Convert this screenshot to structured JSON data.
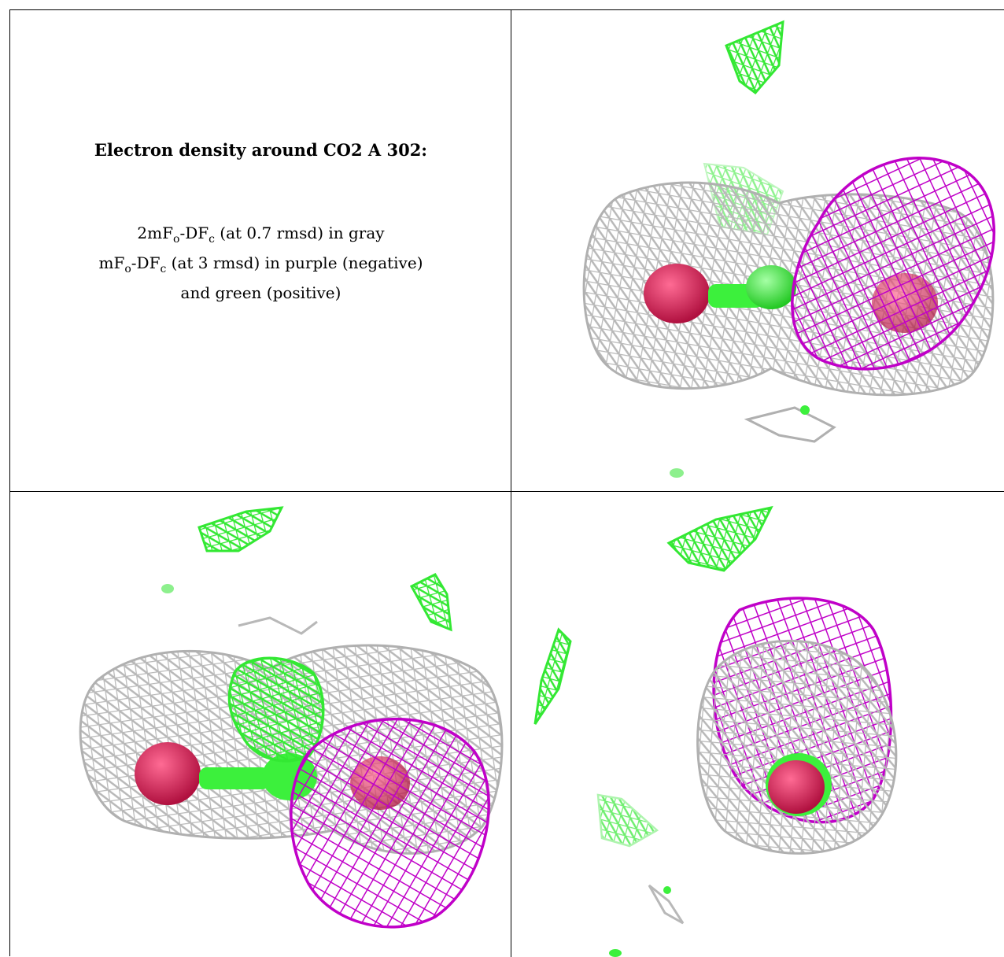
{
  "caption": {
    "title": "Electron density around CO2 A 302:",
    "line1": {
      "pre": "2mF",
      "s1": "o",
      "mid": "-DF",
      "s2": "c",
      "post": " (at 0.7 rmsd) in gray"
    },
    "line2": {
      "pre": "mF",
      "s1": "o",
      "mid": "-DF",
      "s2": "c",
      "post": " (at 3 rmsd) in purple (negative)"
    },
    "line3": "and green (positive)"
  },
  "colors": {
    "gray_mesh": "#b8b8b8",
    "purple_mesh": "#c000c8",
    "green_mesh": "#33e833",
    "atom_oxygen": "#e0245e",
    "atom_carbon": "#3cf03c"
  }
}
